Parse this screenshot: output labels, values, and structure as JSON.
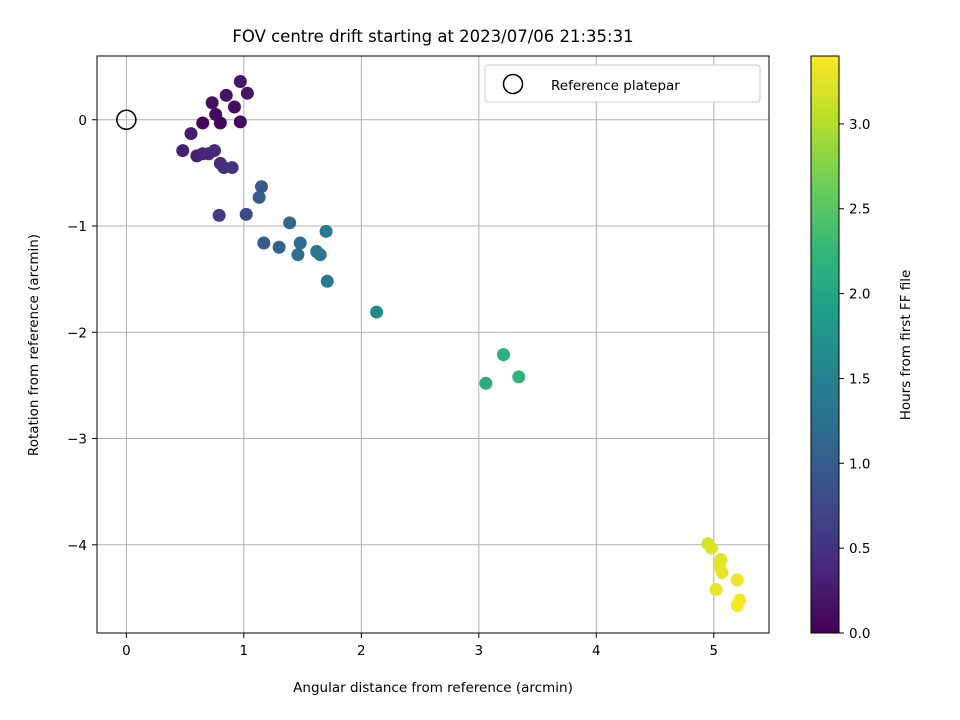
{
  "chart_data": {
    "type": "scatter",
    "title": "FOV centre drift starting at 2023/07/06 21:35:31",
    "xlabel": "Angular distance from reference (arcmin)",
    "ylabel": "Rotation from reference (arcmin)",
    "xlim": [
      -0.25,
      5.47
    ],
    "ylim": [
      -4.83,
      0.6
    ],
    "xticks": [
      0,
      1,
      2,
      3,
      4,
      5
    ],
    "yticks": [
      -4,
      -3,
      -2,
      -1,
      0
    ],
    "grid": true,
    "legend": {
      "position": "top-right",
      "entries": [
        "Reference platepar"
      ]
    },
    "reference_point": {
      "x": 0,
      "y": 0
    },
    "colorbar": {
      "label": "Hours from first FF file",
      "min": 0.0,
      "max": 3.4,
      "ticks": [
        0.0,
        0.5,
        1.0,
        1.5,
        2.0,
        2.5,
        3.0
      ],
      "colormap": "viridis"
    },
    "points": [
      {
        "x": 0.65,
        "y": -0.03,
        "h": 0.05
      },
      {
        "x": 0.8,
        "y": -0.03,
        "h": 0.07
      },
      {
        "x": 0.97,
        "y": -0.02,
        "h": 0.09
      },
      {
        "x": 0.76,
        "y": 0.05,
        "h": 0.11
      },
      {
        "x": 0.92,
        "y": 0.12,
        "h": 0.13
      },
      {
        "x": 0.73,
        "y": 0.16,
        "h": 0.15
      },
      {
        "x": 0.85,
        "y": 0.23,
        "h": 0.17
      },
      {
        "x": 1.03,
        "y": 0.25,
        "h": 0.19
      },
      {
        "x": 0.97,
        "y": 0.36,
        "h": 0.21
      },
      {
        "x": 0.55,
        "y": -0.13,
        "h": 0.25
      },
      {
        "x": 0.48,
        "y": -0.29,
        "h": 0.3
      },
      {
        "x": 0.6,
        "y": -0.34,
        "h": 0.32
      },
      {
        "x": 0.65,
        "y": -0.32,
        "h": 0.35
      },
      {
        "x": 0.7,
        "y": -0.32,
        "h": 0.37
      },
      {
        "x": 0.75,
        "y": -0.29,
        "h": 0.4
      },
      {
        "x": 0.8,
        "y": -0.41,
        "h": 0.45
      },
      {
        "x": 0.83,
        "y": -0.45,
        "h": 0.47
      },
      {
        "x": 0.9,
        "y": -0.45,
        "h": 0.5
      },
      {
        "x": 0.79,
        "y": -0.9,
        "h": 0.6
      },
      {
        "x": 1.02,
        "y": -0.89,
        "h": 0.75
      },
      {
        "x": 1.15,
        "y": -0.63,
        "h": 0.95
      },
      {
        "x": 1.13,
        "y": -0.73,
        "h": 0.97
      },
      {
        "x": 1.17,
        "y": -1.16,
        "h": 1.0
      },
      {
        "x": 1.3,
        "y": -1.2,
        "h": 1.1
      },
      {
        "x": 1.39,
        "y": -0.97,
        "h": 1.15
      },
      {
        "x": 1.48,
        "y": -1.16,
        "h": 1.2
      },
      {
        "x": 1.46,
        "y": -1.27,
        "h": 1.25
      },
      {
        "x": 1.62,
        "y": -1.24,
        "h": 1.3
      },
      {
        "x": 1.65,
        "y": -1.27,
        "h": 1.35
      },
      {
        "x": 1.7,
        "y": -1.05,
        "h": 1.38
      },
      {
        "x": 1.71,
        "y": -1.52,
        "h": 1.4
      },
      {
        "x": 2.13,
        "y": -1.81,
        "h": 1.6
      },
      {
        "x": 3.06,
        "y": -2.48,
        "h": 2.1
      },
      {
        "x": 3.21,
        "y": -2.21,
        "h": 2.15
      },
      {
        "x": 3.34,
        "y": -2.42,
        "h": 2.2
      },
      {
        "x": 4.95,
        "y": -3.99,
        "h": 3.2
      },
      {
        "x": 4.98,
        "y": -4.03,
        "h": 3.22
      },
      {
        "x": 5.06,
        "y": -4.14,
        "h": 3.25
      },
      {
        "x": 5.05,
        "y": -4.2,
        "h": 3.27
      },
      {
        "x": 5.07,
        "y": -4.26,
        "h": 3.29
      },
      {
        "x": 5.02,
        "y": -4.42,
        "h": 3.3
      },
      {
        "x": 5.2,
        "y": -4.33,
        "h": 3.33
      },
      {
        "x": 5.22,
        "y": -4.52,
        "h": 3.35
      },
      {
        "x": 5.2,
        "y": -4.57,
        "h": 3.38
      }
    ]
  }
}
